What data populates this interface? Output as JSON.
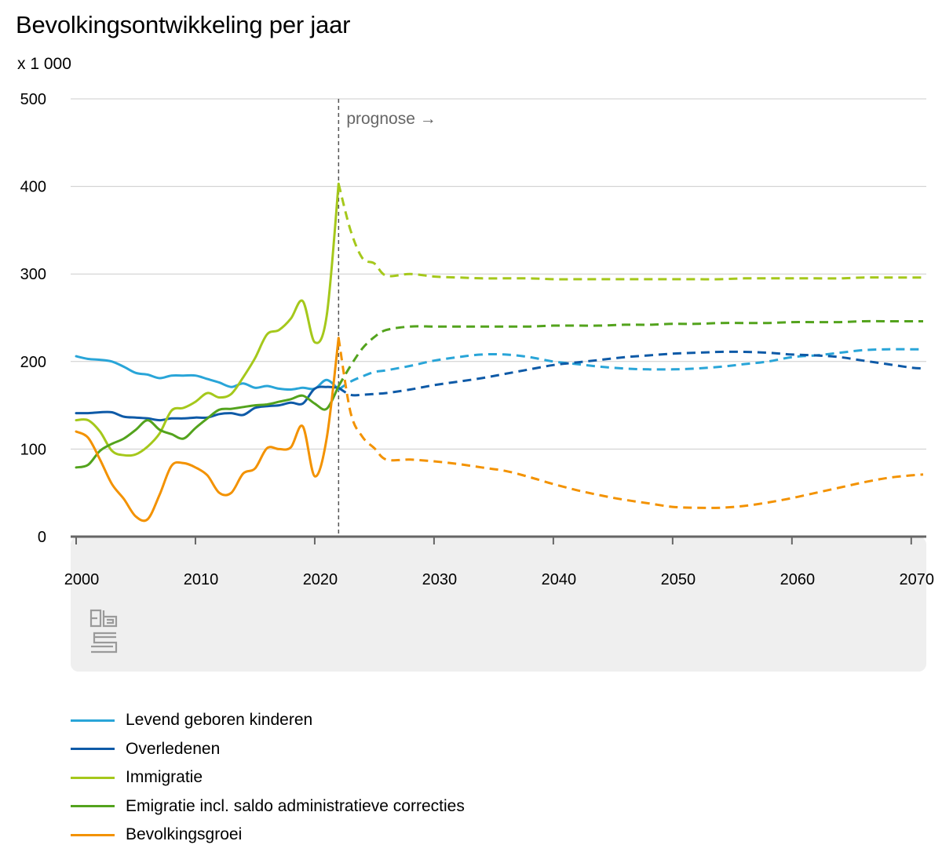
{
  "title": "Bevolkingsontwikkeling per jaar",
  "unit": "x 1 000",
  "prognose_label": "prognose →",
  "colors": {
    "births": "#29a5d8",
    "deaths": "#0e5aa7",
    "immigration": "#a5c81b",
    "emigration": "#53a31d",
    "growth": "#f39200",
    "plot_band": "#efefef",
    "grid": "#cccccc"
  },
  "logo_icon": "cbs-logo-icon",
  "chart_data": {
    "type": "line",
    "title": "Bevolkingsontwikkeling per jaar",
    "ylabel": "x 1 000",
    "xlim": [
      2000,
      2071
    ],
    "ylim": [
      0,
      500
    ],
    "yticks": [
      0,
      100,
      200,
      300,
      400,
      500
    ],
    "xticks": [
      2000,
      2010,
      2020,
      2030,
      2040,
      2050,
      2060,
      2070
    ],
    "grid": true,
    "forecast_start": 2022,
    "legend_position": "bottom",
    "series": [
      {
        "key": "births",
        "name": "Levend geboren kinderen",
        "x": [
          2000,
          2001,
          2002,
          2003,
          2004,
          2005,
          2006,
          2007,
          2008,
          2009,
          2010,
          2011,
          2012,
          2013,
          2014,
          2015,
          2016,
          2017,
          2018,
          2019,
          2020,
          2021,
          2022,
          2023,
          2024,
          2025,
          2026,
          2028,
          2030,
          2032,
          2034,
          2036,
          2038,
          2040,
          2042,
          2044,
          2046,
          2048,
          2050,
          2052,
          2054,
          2056,
          2058,
          2060,
          2062,
          2064,
          2066,
          2068,
          2070,
          2071
        ],
        "y": [
          206,
          203,
          202,
          200,
          194,
          187,
          185,
          181,
          184,
          184,
          184,
          180,
          176,
          171,
          175,
          170,
          172,
          169,
          168,
          170,
          169,
          179,
          168,
          177,
          183,
          188,
          190,
          195,
          201,
          205,
          208,
          208,
          205,
          200,
          197,
          194,
          192,
          191,
          191,
          192,
          194,
          197,
          200,
          205,
          207,
          210,
          213,
          214,
          214,
          214
        ]
      },
      {
        "key": "deaths",
        "name": "Overledenen",
        "x": [
          2000,
          2001,
          2002,
          2003,
          2004,
          2005,
          2006,
          2007,
          2008,
          2009,
          2010,
          2011,
          2012,
          2013,
          2014,
          2015,
          2016,
          2017,
          2018,
          2019,
          2020,
          2021,
          2022,
          2023,
          2024,
          2025,
          2026,
          2028,
          2030,
          2032,
          2034,
          2036,
          2038,
          2040,
          2042,
          2044,
          2046,
          2048,
          2050,
          2052,
          2054,
          2056,
          2058,
          2060,
          2062,
          2064,
          2066,
          2068,
          2070,
          2071
        ],
        "y": [
          141,
          141,
          142,
          142,
          137,
          136,
          135,
          133,
          135,
          135,
          136,
          136,
          140,
          141,
          139,
          147,
          149,
          150,
          153,
          152,
          169,
          171,
          170,
          162,
          162,
          163,
          164,
          168,
          173,
          177,
          181,
          186,
          191,
          196,
          199,
          202,
          205,
          207,
          209,
          210,
          211,
          211,
          210,
          208,
          207,
          205,
          201,
          197,
          193,
          192
        ]
      },
      {
        "key": "immigration",
        "name": "Immigratie",
        "x": [
          2000,
          2001,
          2002,
          2003,
          2004,
          2005,
          2006,
          2007,
          2008,
          2009,
          2010,
          2011,
          2012,
          2013,
          2014,
          2015,
          2016,
          2017,
          2018,
          2019,
          2020,
          2021,
          2022,
          2023,
          2024,
          2025,
          2026,
          2028,
          2030,
          2032,
          2034,
          2036,
          2038,
          2040,
          2042,
          2044,
          2046,
          2048,
          2050,
          2052,
          2054,
          2056,
          2058,
          2060,
          2062,
          2064,
          2066,
          2068,
          2070,
          2071
        ],
        "y": [
          133,
          133,
          120,
          98,
          93,
          94,
          103,
          118,
          144,
          147,
          154,
          164,
          159,
          163,
          182,
          204,
          231,
          236,
          249,
          269,
          222,
          252,
          403,
          350,
          318,
          312,
          298,
          300,
          297,
          296,
          295,
          295,
          295,
          294,
          294,
          294,
          294,
          294,
          294,
          294,
          294,
          295,
          295,
          295,
          295,
          295,
          296,
          296,
          296,
          296
        ]
      },
      {
        "key": "emigration",
        "name": "Emigratie incl. saldo administratieve correcties",
        "x": [
          2000,
          2001,
          2002,
          2003,
          2004,
          2005,
          2006,
          2007,
          2008,
          2009,
          2010,
          2011,
          2012,
          2013,
          2014,
          2015,
          2016,
          2017,
          2018,
          2019,
          2020,
          2021,
          2022,
          2023,
          2024,
          2025,
          2026,
          2028,
          2030,
          2032,
          2034,
          2036,
          2038,
          2040,
          2042,
          2044,
          2046,
          2048,
          2050,
          2052,
          2054,
          2056,
          2058,
          2060,
          2062,
          2064,
          2066,
          2068,
          2070,
          2071
        ],
        "y": [
          79,
          82,
          98,
          106,
          112,
          122,
          133,
          122,
          117,
          112,
          124,
          135,
          145,
          146,
          148,
          150,
          151,
          154,
          157,
          161,
          152,
          146,
          172,
          195,
          215,
          228,
          236,
          240,
          240,
          240,
          240,
          240,
          240,
          241,
          241,
          241,
          242,
          242,
          243,
          243,
          244,
          244,
          244,
          245,
          245,
          245,
          246,
          246,
          246,
          246
        ]
      },
      {
        "key": "growth",
        "name": "Bevolkingsgroei",
        "x": [
          2000,
          2001,
          2002,
          2003,
          2004,
          2005,
          2006,
          2007,
          2008,
          2009,
          2010,
          2011,
          2012,
          2013,
          2014,
          2015,
          2016,
          2017,
          2018,
          2019,
          2020,
          2021,
          2022,
          2023,
          2024,
          2025,
          2026,
          2028,
          2030,
          2032,
          2034,
          2036,
          2038,
          2040,
          2042,
          2044,
          2046,
          2048,
          2050,
          2052,
          2054,
          2056,
          2058,
          2060,
          2062,
          2064,
          2066,
          2068,
          2070,
          2071
        ],
        "y": [
          120,
          113,
          88,
          60,
          43,
          23,
          20,
          48,
          81,
          84,
          79,
          70,
          50,
          50,
          72,
          78,
          101,
          100,
          102,
          126,
          69,
          112,
          227,
          142,
          114,
          101,
          88,
          88,
          86,
          83,
          79,
          75,
          68,
          60,
          53,
          47,
          42,
          38,
          34,
          33,
          33,
          35,
          39,
          44,
          50,
          56,
          62,
          67,
          70,
          71
        ]
      }
    ]
  }
}
